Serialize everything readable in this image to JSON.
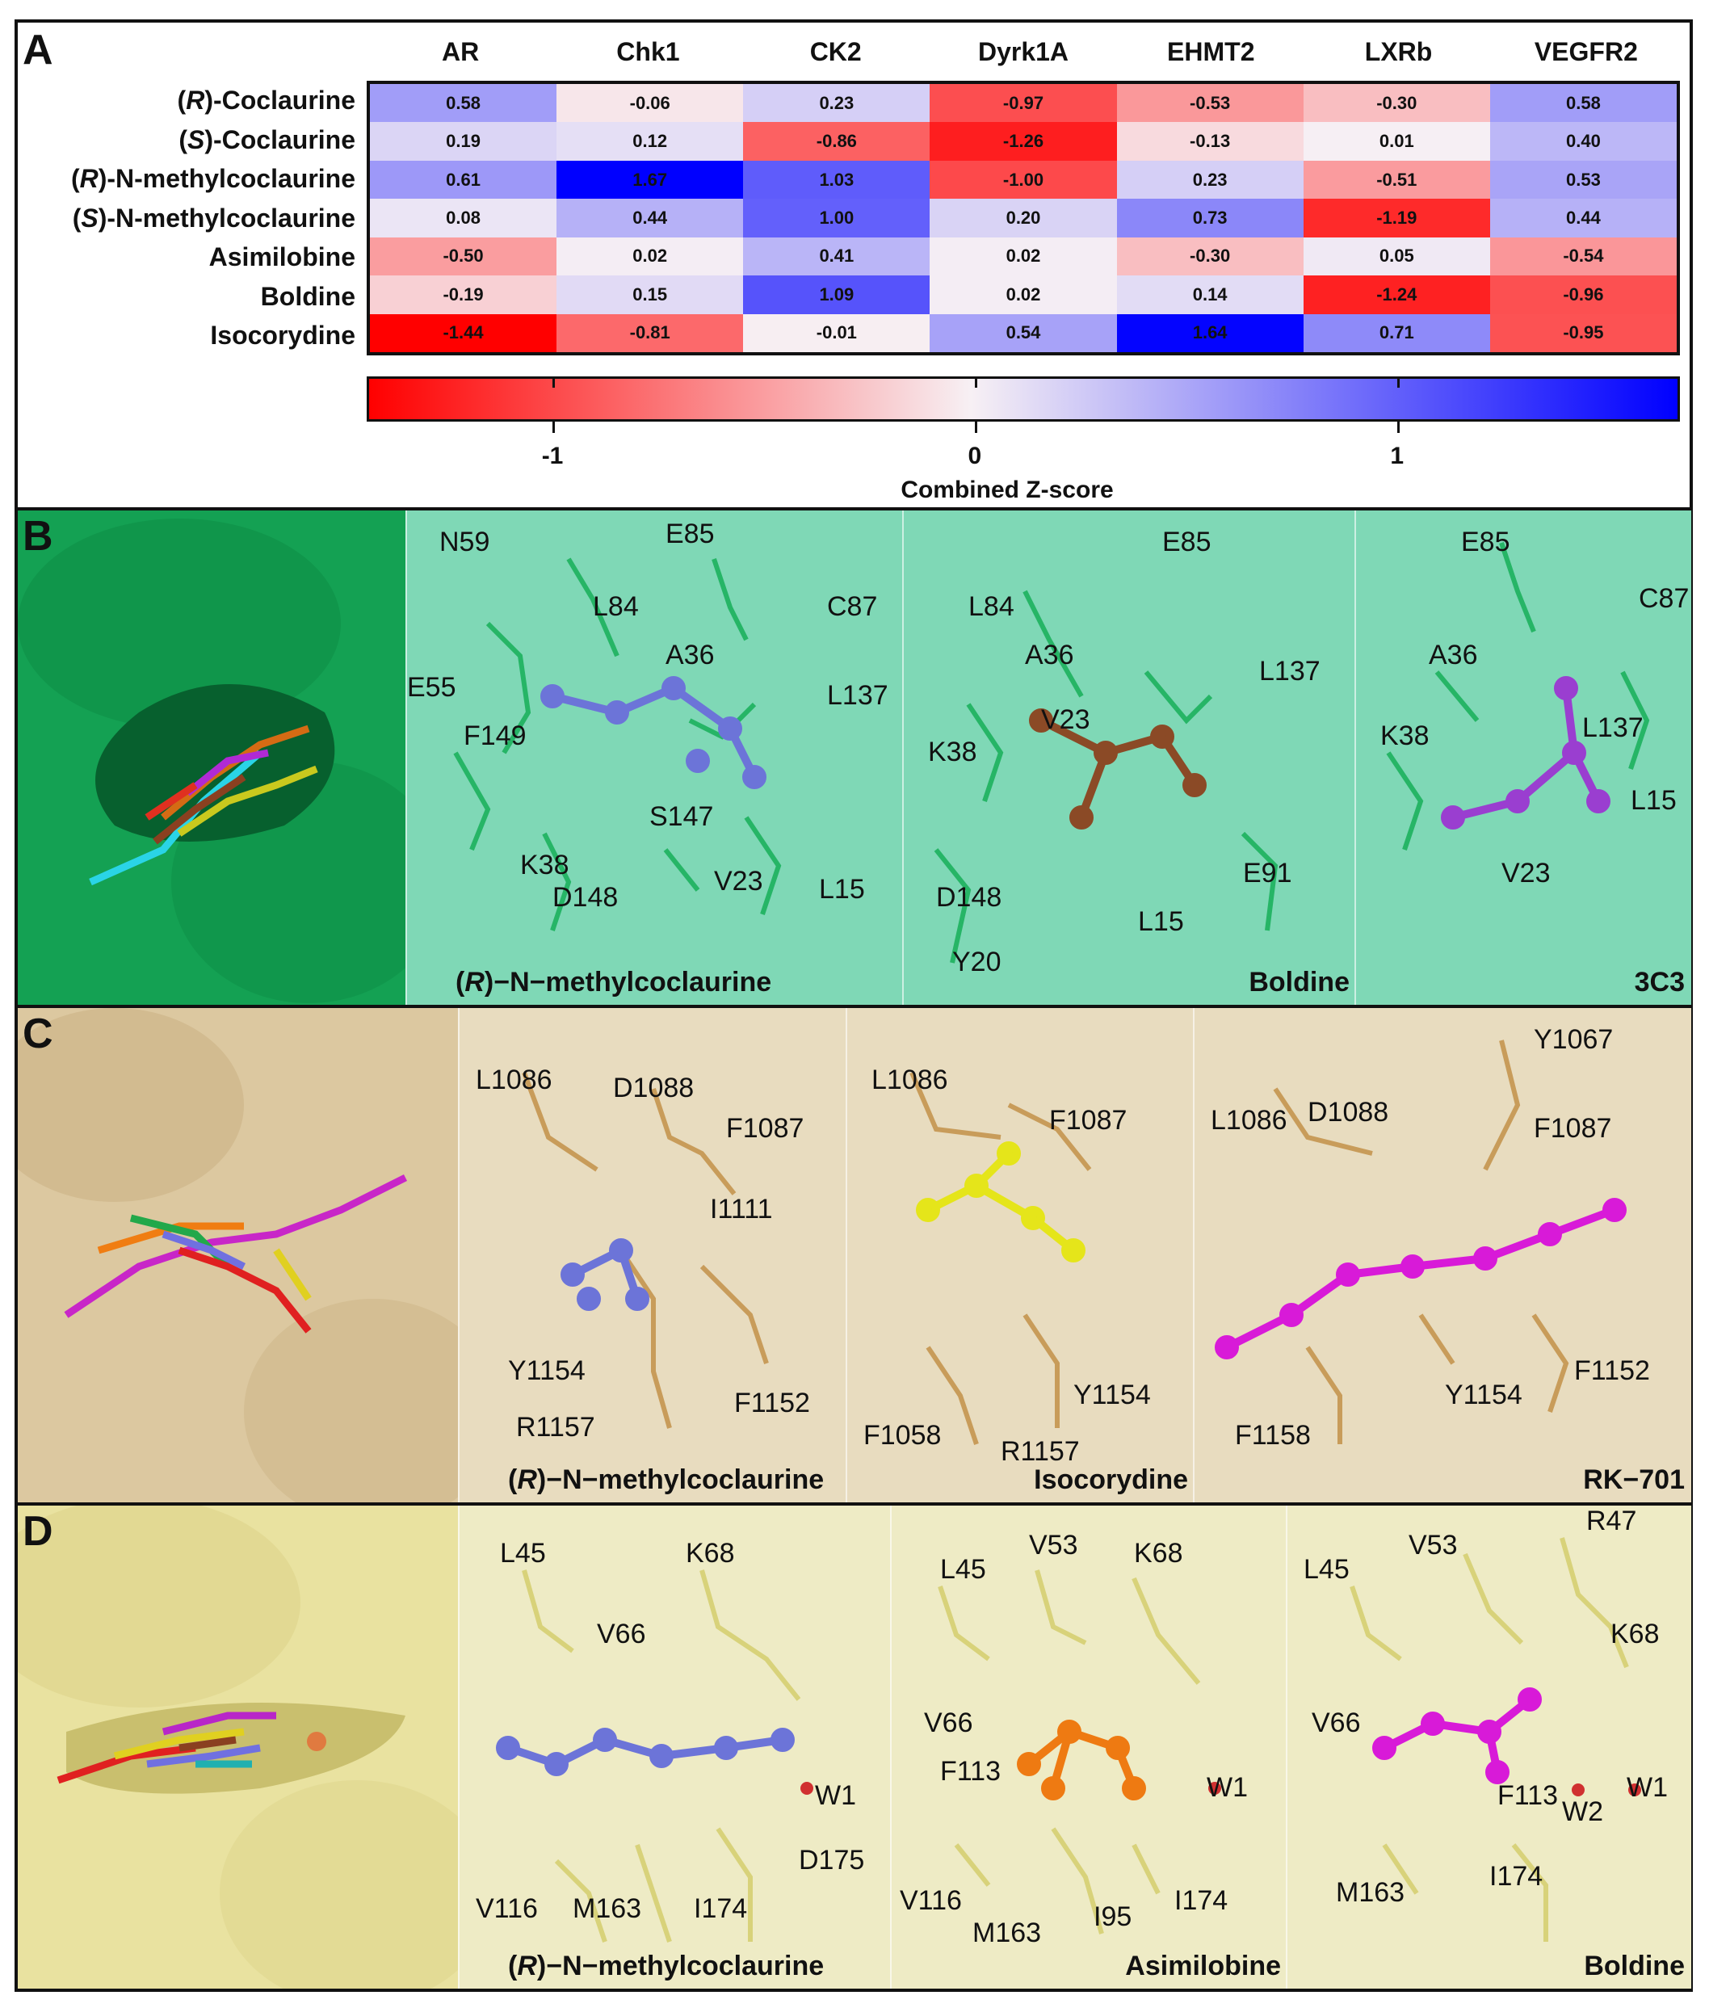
{
  "panel_a": {
    "letter": "A",
    "columns": [
      "AR",
      "Chk1",
      "CK2",
      "Dyrk1A",
      "EHMT2",
      "LXRb",
      "VEGFR2"
    ],
    "rows": [
      {
        "pre": "(",
        "it": "R",
        "post": ")-Coclaurine",
        "values": [
          "0.58",
          "-0.06",
          "0.23",
          "-0.97",
          "-0.53",
          "-0.30",
          "0.58"
        ]
      },
      {
        "pre": "(",
        "it": "S",
        "post": ")-Coclaurine",
        "values": [
          "0.19",
          "0.12",
          "-0.86",
          "-1.26",
          "-0.13",
          "0.01",
          "0.40"
        ]
      },
      {
        "pre": "(",
        "it": "R",
        "post": ")-N-methylcoclaurine",
        "values": [
          "0.61",
          "1.67",
          "1.03",
          "-1.00",
          "0.23",
          "-0.51",
          "0.53"
        ]
      },
      {
        "pre": "(",
        "it": "S",
        "post": ")-N-methylcoclaurine",
        "values": [
          "0.08",
          "0.44",
          "1.00",
          "0.20",
          "0.73",
          "-1.19",
          "0.44"
        ]
      },
      {
        "pre": "",
        "it": "",
        "post": "Asimilobine",
        "values": [
          "-0.50",
          "0.02",
          "0.41",
          "0.02",
          "-0.30",
          "0.05",
          "-0.54"
        ]
      },
      {
        "pre": "",
        "it": "",
        "post": "Boldine",
        "values": [
          "-0.19",
          "0.15",
          "1.09",
          "0.02",
          "0.14",
          "-1.24",
          "-0.96"
        ]
      },
      {
        "pre": "",
        "it": "",
        "post": "Isocorydine",
        "values": [
          "-1.44",
          "-0.81",
          "-0.01",
          "0.54",
          "1.64",
          "0.71",
          "-0.95"
        ]
      }
    ],
    "colorbar": {
      "ticks": [
        "-1",
        "0",
        "1"
      ],
      "title": "Combined Z-score",
      "min": -1.44,
      "max": 1.67,
      "colors": {
        "low": "#ff0000",
        "mid": "#f7f0f4",
        "high": "#0000ff"
      }
    }
  },
  "panel_b": {
    "letter": "B",
    "colors": {
      "surface": "#1fa85a",
      "bg": "#7fd6b4",
      "residue": "#2ebd6b"
    },
    "views": [
      {
        "caption": "(R)-N-methylcoclaurine",
        "caption_pre": "(",
        "caption_it": "R",
        "caption_post": ")−N−methylcoclaurine",
        "labels": [
          "N59",
          "E85",
          "L84",
          "C87",
          "A36",
          "E55",
          "L137",
          "F149",
          "S147",
          "K38",
          "D148",
          "V23",
          "L15"
        ]
      },
      {
        "caption": "Boldine",
        "labels": [
          "E85",
          "L84",
          "A36",
          "L137",
          "K38",
          "V23",
          "D148",
          "L15",
          "E91",
          "Y20"
        ]
      },
      {
        "caption": "3C3",
        "labels": [
          "E85",
          "C87",
          "A36",
          "K38",
          "L137",
          "L15",
          "V23"
        ]
      }
    ]
  },
  "panel_c": {
    "letter": "C",
    "colors": {
      "surface": "#e2cfa8",
      "bg": "#ece0c4",
      "residue": "#c89c5a"
    },
    "views": [
      {
        "caption_pre": "(",
        "caption_it": "R",
        "caption_post": ")−N−methylcoclaurine",
        "labels": [
          "L1086",
          "D1088",
          "F1087",
          "I1111",
          "Y1154",
          "F1152",
          "R1157"
        ]
      },
      {
        "caption": "Isocorydine",
        "labels": [
          "L1086",
          "F1087",
          "Y1154",
          "F1058",
          "R1157"
        ]
      },
      {
        "caption": "RK−701",
        "labels": [
          "Y1067",
          "L1086",
          "D1088",
          "F1087",
          "F1152",
          "Y1154",
          "F1158"
        ]
      }
    ]
  },
  "panel_d": {
    "letter": "D",
    "colors": {
      "surface": "#ece6a6",
      "bg": "#efecc6",
      "residue": "#d8d27a"
    },
    "views": [
      {
        "caption_pre": "(",
        "caption_it": "R",
        "caption_post": ")−N−methylcoclaurine",
        "labels": [
          "L45",
          "K68",
          "V66",
          "W1",
          "D175",
          "V116",
          "M163",
          "I174"
        ]
      },
      {
        "caption": "Asimilobine",
        "labels": [
          "L45",
          "V53",
          "K68",
          "V66",
          "F113",
          "W1",
          "V116",
          "M163",
          "I95",
          "I174"
        ]
      },
      {
        "caption": "Boldine",
        "labels": [
          "V53",
          "R47",
          "L45",
          "K68",
          "V66",
          "F113",
          "W2",
          "W1",
          "M163",
          "I174"
        ]
      }
    ]
  }
}
